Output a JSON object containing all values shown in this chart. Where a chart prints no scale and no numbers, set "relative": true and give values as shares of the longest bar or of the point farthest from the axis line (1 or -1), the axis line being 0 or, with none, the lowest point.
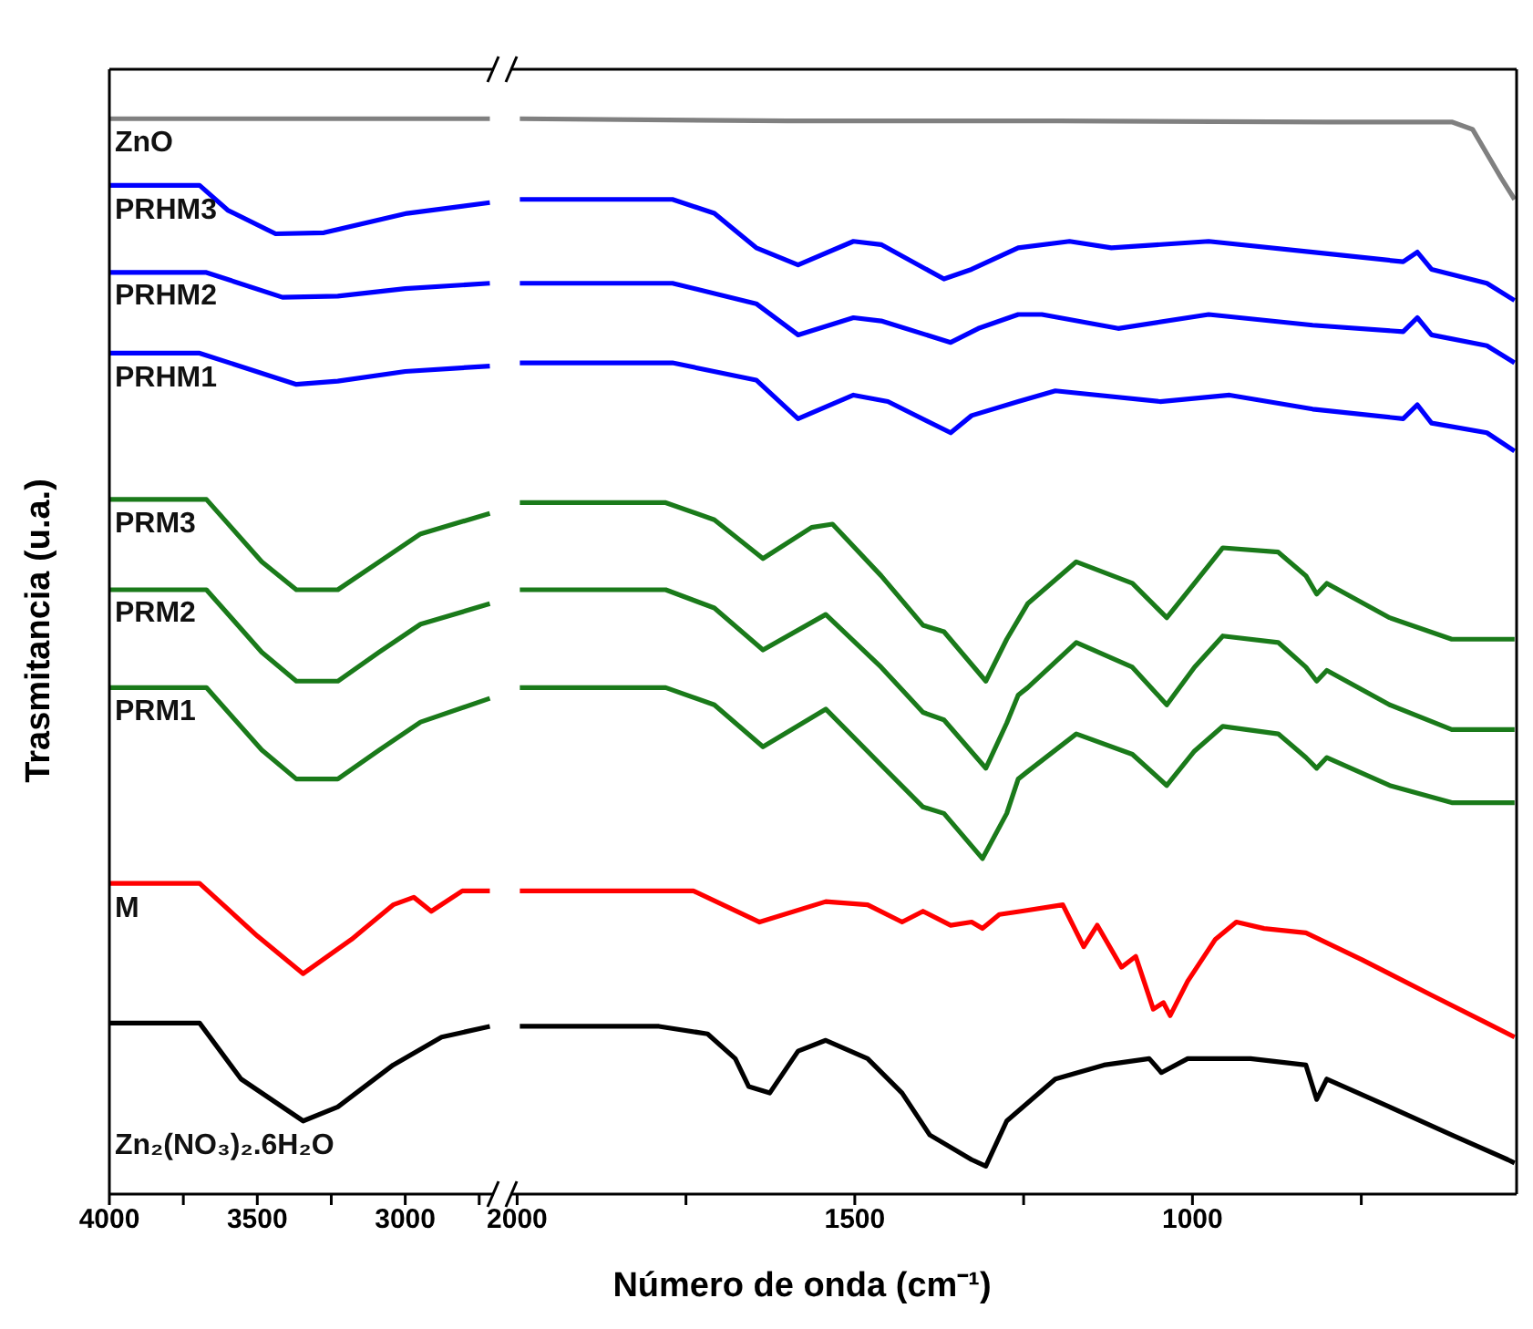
{
  "chart_data": [
    {
      "type": "line",
      "relative": true,
      "ylabel": "Trasmitancia (u.a.)",
      "xlim": [
        4000,
        2700
      ],
      "xticks": [
        4000,
        3500,
        3000,
        {
          "value": 3750,
          "label": null
        },
        {
          "value": 3250,
          "label": null
        },
        {
          "value": 2750,
          "label": null
        }
      ],
      "series": [
        {
          "name": "ZnO",
          "color": "#808080",
          "x": [
            4000,
            3500,
            3000,
            2714
          ],
          "values": [
            1.0,
            1.0,
            1.0,
            1.0
          ]
        },
        {
          "name": "PRHM3",
          "color": "#0000ff",
          "x": [
            4000,
            3695,
            3600,
            3438,
            3275,
            2994,
            2714
          ],
          "values": [
            0.938,
            0.938,
            0.915,
            0.893,
            0.894,
            0.912,
            0.922
          ]
        },
        {
          "name": "PRHM2",
          "color": "#0000ff",
          "x": [
            4000,
            3672,
            3415,
            3228,
            3000,
            2714
          ],
          "values": [
            0.857,
            0.857,
            0.834,
            0.835,
            0.842,
            0.847
          ]
        },
        {
          "name": "PRHM1",
          "color": "#0000ff",
          "x": [
            4000,
            3695,
            3368,
            3228,
            3000,
            2714
          ],
          "values": [
            0.782,
            0.782,
            0.753,
            0.756,
            0.765,
            0.77
          ]
        },
        {
          "name": "PRM3",
          "color": "#1a7a1a",
          "x": [
            4000,
            3672,
            3485,
            3368,
            3228,
            3088,
            2948,
            2714
          ],
          "values": [
            0.646,
            0.646,
            0.588,
            0.562,
            0.562,
            0.588,
            0.614,
            0.633
          ]
        },
        {
          "name": "PRM2",
          "color": "#1a7a1a",
          "x": [
            4000,
            3672,
            3485,
            3368,
            3228,
            3088,
            2948,
            2714
          ],
          "values": [
            0.562,
            0.562,
            0.504,
            0.477,
            0.477,
            0.504,
            0.53,
            0.549
          ]
        },
        {
          "name": "PRM1",
          "color": "#1a7a1a",
          "x": [
            4000,
            3672,
            3485,
            3368,
            3228,
            3088,
            2948,
            2714
          ],
          "values": [
            0.471,
            0.471,
            0.413,
            0.386,
            0.386,
            0.413,
            0.439,
            0.461
          ]
        },
        {
          "name": "M",
          "color": "#ff0000",
          "x": [
            4000,
            3695,
            3500,
            3345,
            3181,
            3041,
            2971,
            2912,
            2807,
            2714
          ],
          "values": [
            0.289,
            0.289,
            0.24,
            0.205,
            0.237,
            0.269,
            0.276,
            0.263,
            0.282,
            0.282
          ]
        },
        {
          "name": "Zn₂(NO₃)₂.6H₂O",
          "color": "#000000",
          "x": [
            4000,
            3695,
            3555,
            3345,
            3228,
            3041,
            2877,
            2714
          ],
          "values": [
            0.159,
            0.159,
            0.107,
            0.068,
            0.081,
            0.12,
            0.146,
            0.156
          ]
        }
      ]
    },
    {
      "type": "line",
      "relative": true,
      "xlabel": "Número de onda (cm⁻¹)",
      "xlim": [
        2010,
        520
      ],
      "xticks": [
        2000,
        1500,
        1000,
        {
          "value": 1750,
          "label": null
        },
        {
          "value": 1250,
          "label": null
        },
        {
          "value": 750,
          "label": null
        }
      ],
      "series": [
        {
          "color": "#808080",
          "x": [
            1996,
            1600,
            1200,
            800,
            616,
            585,
            543,
            523
          ],
          "values": [
            1.0,
            0.998,
            0.998,
            0.997,
            0.997,
            0.99,
            0.945,
            0.925
          ]
        },
        {
          "color": "#0000ff",
          "x": [
            1996,
            1770,
            1708,
            1646,
            1584,
            1502,
            1461,
            1368,
            1327,
            1258,
            1182,
            1120,
            976,
            822,
            688,
            667,
            646,
            564,
            523
          ],
          "values": [
            0.925,
            0.925,
            0.912,
            0.88,
            0.864,
            0.886,
            0.883,
            0.851,
            0.86,
            0.88,
            0.886,
            0.88,
            0.886,
            0.876,
            0.867,
            0.876,
            0.86,
            0.847,
            0.831
          ]
        },
        {
          "color": "#0000ff",
          "x": [
            1996,
            1770,
            1646,
            1584,
            1502,
            1461,
            1358,
            1317,
            1258,
            1223,
            1110,
            976,
            822,
            688,
            667,
            646,
            564,
            523
          ],
          "values": [
            0.847,
            0.847,
            0.828,
            0.799,
            0.815,
            0.812,
            0.792,
            0.805,
            0.818,
            0.818,
            0.805,
            0.818,
            0.808,
            0.802,
            0.815,
            0.799,
            0.789,
            0.773
          ]
        },
        {
          "color": "#0000ff",
          "x": [
            1996,
            1770,
            1646,
            1584,
            1502,
            1451,
            1358,
            1327,
            1258,
            1203,
            1048,
            945,
            822,
            688,
            667,
            646,
            564,
            523
          ],
          "values": [
            0.773,
            0.773,
            0.757,
            0.721,
            0.743,
            0.737,
            0.708,
            0.724,
            0.737,
            0.747,
            0.737,
            0.743,
            0.73,
            0.721,
            0.734,
            0.717,
            0.708,
            0.691
          ]
        },
        {
          "color": "#1a7a1a",
          "x": [
            1996,
            1780,
            1708,
            1636,
            1564,
            1533,
            1461,
            1399,
            1368,
            1306,
            1275,
            1244,
            1172,
            1089,
            1038,
            997,
            955,
            873,
            832,
            816,
            801,
            708,
            616,
            523
          ],
          "values": [
            0.643,
            0.643,
            0.627,
            0.591,
            0.62,
            0.623,
            0.575,
            0.529,
            0.523,
            0.477,
            0.516,
            0.549,
            0.588,
            0.568,
            0.536,
            0.568,
            0.601,
            0.597,
            0.575,
            0.558,
            0.568,
            0.536,
            0.516,
            0.516
          ]
        },
        {
          "color": "#1a7a1a",
          "x": [
            1996,
            1780,
            1708,
            1636,
            1543,
            1461,
            1399,
            1368,
            1306,
            1275,
            1258,
            1244,
            1172,
            1089,
            1038,
            997,
            955,
            873,
            832,
            816,
            801,
            708,
            616,
            523
          ],
          "values": [
            0.562,
            0.562,
            0.545,
            0.506,
            0.539,
            0.49,
            0.448,
            0.441,
            0.396,
            0.438,
            0.464,
            0.471,
            0.513,
            0.49,
            0.455,
            0.49,
            0.519,
            0.513,
            0.49,
            0.477,
            0.487,
            0.455,
            0.432,
            0.432
          ]
        },
        {
          "color": "#1a7a1a",
          "x": [
            1996,
            1780,
            1708,
            1636,
            1543,
            1461,
            1399,
            1368,
            1311,
            1275,
            1258,
            1244,
            1172,
            1089,
            1038,
            997,
            955,
            873,
            832,
            816,
            801,
            708,
            616,
            523
          ],
          "values": [
            0.471,
            0.471,
            0.455,
            0.416,
            0.451,
            0.399,
            0.36,
            0.354,
            0.312,
            0.354,
            0.386,
            0.393,
            0.428,
            0.409,
            0.38,
            0.412,
            0.435,
            0.428,
            0.406,
            0.396,
            0.406,
            0.38,
            0.364,
            0.364
          ]
        },
        {
          "color": "#ff0000",
          "x": [
            1996,
            1739,
            1641,
            1543,
            1481,
            1430,
            1399,
            1358,
            1327,
            1311,
            1286,
            1254,
            1192,
            1161,
            1141,
            1105,
            1084,
            1058,
            1043,
            1033,
            1007,
            966,
            935,
            894,
            832,
            749,
            646,
            564,
            523
          ],
          "values": [
            0.282,
            0.282,
            0.253,
            0.272,
            0.269,
            0.253,
            0.263,
            0.25,
            0.253,
            0.247,
            0.26,
            0.263,
            0.269,
            0.23,
            0.25,
            0.211,
            0.221,
            0.172,
            0.178,
            0.166,
            0.198,
            0.237,
            0.253,
            0.247,
            0.243,
            0.218,
            0.185,
            0.159,
            0.146
          ]
        },
        {
          "color": "#000000",
          "x": [
            1996,
            1790,
            1718,
            1677,
            1657,
            1626,
            1584,
            1543,
            1481,
            1430,
            1389,
            1327,
            1306,
            1275,
            1203,
            1131,
            1064,
            1046,
            1007,
            914,
            832,
            816,
            801,
            708,
            616,
            533,
            523
          ],
          "values": [
            0.156,
            0.156,
            0.149,
            0.126,
            0.1,
            0.094,
            0.133,
            0.143,
            0.126,
            0.094,
            0.055,
            0.032,
            0.026,
            0.068,
            0.107,
            0.12,
            0.126,
            0.113,
            0.126,
            0.126,
            0.12,
            0.088,
            0.107,
            0.081,
            0.055,
            0.032,
            0.029
          ]
        }
      ]
    }
  ]
}
